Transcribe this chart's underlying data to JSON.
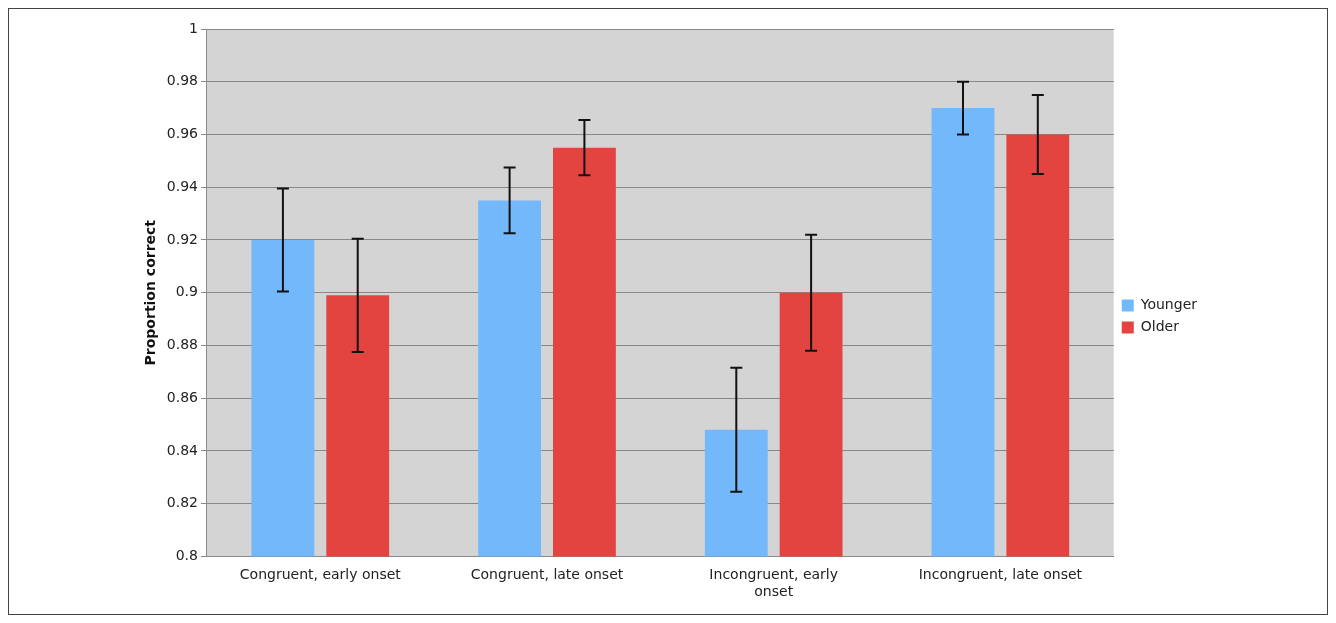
{
  "chart_data": {
    "type": "bar",
    "ylabel": "Proportion correct",
    "categories": [
      "Congruent, early onset",
      "Congruent, late onset",
      "Incongruent, early onset",
      "Incongruent, late onset"
    ],
    "series": [
      {
        "name": "Younger",
        "color": "#74b8fc",
        "values": [
          0.92,
          0.935,
          0.848,
          0.97
        ],
        "errors": [
          0.0195,
          0.0125,
          0.0235,
          0.01
        ]
      },
      {
        "name": "Older",
        "color": "#e44440",
        "values": [
          0.899,
          0.955,
          0.9,
          0.96
        ],
        "errors": [
          0.0215,
          0.0105,
          0.022,
          0.015
        ]
      }
    ],
    "ylim": [
      0.8,
      1
    ],
    "yticks": [
      0.8,
      0.82,
      0.84,
      0.86,
      0.88,
      0.9,
      0.92,
      0.94,
      0.96,
      0.98,
      1
    ],
    "grid": "y",
    "legend": "right"
  }
}
